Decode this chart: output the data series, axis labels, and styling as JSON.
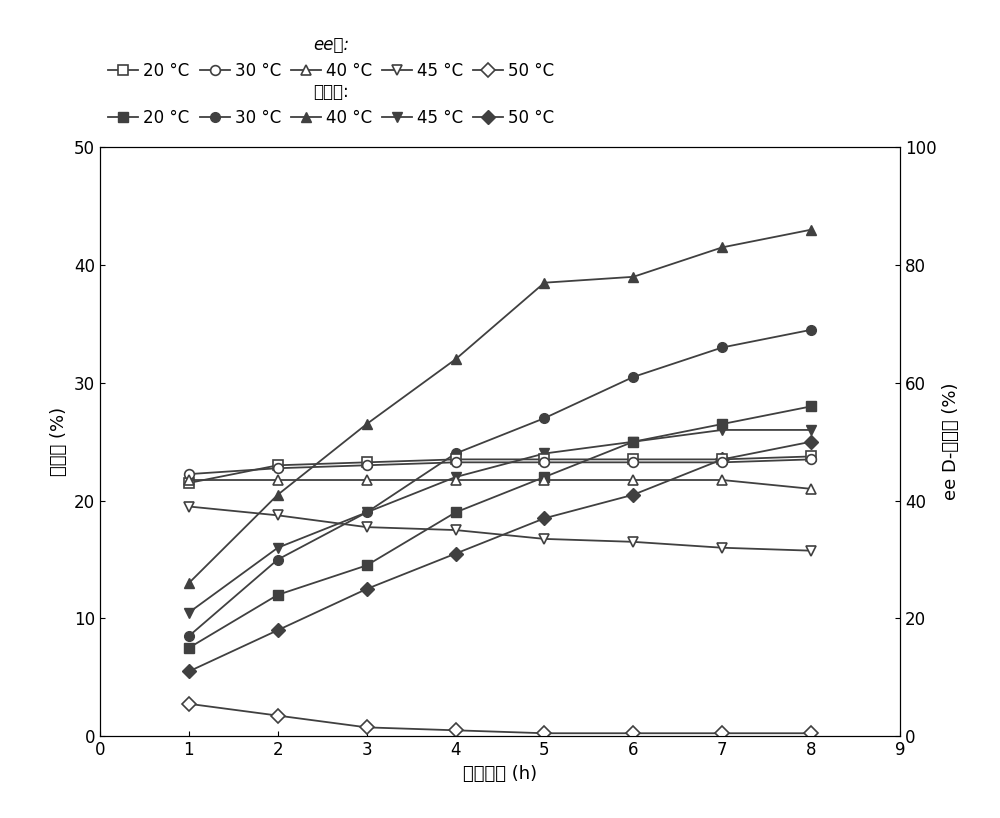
{
  "x": [
    1,
    2,
    3,
    4,
    5,
    6,
    7,
    8
  ],
  "conversion": {
    "20C": [
      7.5,
      12.0,
      14.5,
      19.0,
      22.0,
      25.0,
      26.5,
      28.0
    ],
    "30C": [
      8.5,
      15.0,
      19.0,
      24.0,
      27.0,
      30.5,
      33.0,
      34.5
    ],
    "40C": [
      13.0,
      20.5,
      26.5,
      32.0,
      38.5,
      39.0,
      41.5,
      43.0
    ],
    "45C": [
      10.5,
      16.0,
      19.0,
      22.0,
      24.0,
      25.0,
      26.0,
      26.0
    ],
    "50C": [
      5.5,
      9.0,
      12.5,
      15.5,
      18.5,
      20.5,
      23.5,
      25.0
    ]
  },
  "ee": {
    "20C": [
      43.0,
      46.0,
      46.5,
      47.0,
      47.0,
      47.0,
      47.0,
      47.5
    ],
    "30C": [
      44.5,
      45.5,
      46.0,
      46.5,
      46.5,
      46.5,
      46.5,
      47.0
    ],
    "40C": [
      43.5,
      43.5,
      43.5,
      43.5,
      43.5,
      43.5,
      43.5,
      42.0
    ],
    "45C": [
      39.0,
      37.5,
      35.5,
      35.0,
      33.5,
      33.0,
      32.0,
      31.5
    ],
    "50C": [
      5.5,
      3.5,
      1.5,
      1.0,
      0.5,
      0.5,
      0.5,
      0.5
    ]
  },
  "xlim": [
    0,
    9
  ],
  "ylim_left": [
    0,
    50
  ],
  "ylim_right": [
    0,
    100
  ],
  "xlabel": "反应时间 (h)",
  "ylabel_left": "转化率 (%)",
  "ylabel_right": "ee D-泛解酸 (%)",
  "legend_conversion_label": "转化率:",
  "legend_ee_label": "ee値:",
  "temps": [
    "20 °C",
    "30 °C",
    "40 °C",
    "45 °C",
    "50 °C"
  ],
  "xticks": [
    0,
    1,
    2,
    3,
    4,
    5,
    6,
    7,
    8,
    9
  ],
  "yticks_left": [
    0,
    10,
    20,
    30,
    40,
    50
  ],
  "yticks_right": [
    0,
    20,
    40,
    60,
    80,
    100
  ],
  "line_color": "#404040",
  "figsize": [
    10.0,
    8.18
  ]
}
